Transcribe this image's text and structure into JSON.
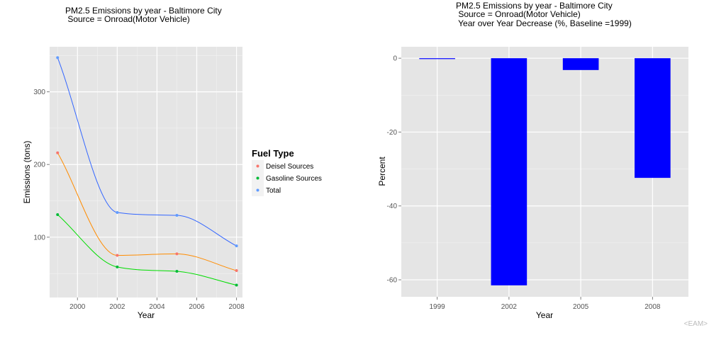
{
  "charts": [
    {
      "title_lines": [
        "PM2.5 Emissions by year - Baltimore City",
        " Source = Onroad(Motor Vehicle)"
      ]
    },
    {
      "title_lines": [
        "PM2.5 Emissions by year - Baltimore City",
        " Source = Onroad(Motor Vehicle)",
        " Year over Year Decrease (%, Baseline =1999)"
      ]
    }
  ],
  "credit": "<EAM>",
  "chart_data": [
    {
      "type": "line",
      "title": "PM2.5 Emissions by year - Baltimore City\n Source = Onroad(Motor Vehicle)",
      "xlabel": "Year",
      "ylabel": "Emissions (tons)",
      "x": [
        1999,
        2002,
        2005,
        2008
      ],
      "xlim": [
        1998.6,
        2008.3
      ],
      "ylim": [
        17,
        362
      ],
      "xticks": [
        2000,
        2002,
        2004,
        2006,
        2008
      ],
      "yticks": [
        100,
        200,
        300
      ],
      "grid": true,
      "smoothed": true,
      "legend": {
        "title": "Fuel Type",
        "position": "right"
      },
      "series": [
        {
          "name": "Deisel Sources",
          "color": "#F8766D",
          "line_color": "#FF8C00",
          "values": [
            216,
            75,
            77,
            54
          ]
        },
        {
          "name": "Gasoline Sources",
          "color": "#00BA38",
          "line_color": "#00DD00",
          "values": [
            131,
            59,
            53,
            34
          ]
        },
        {
          "name": "Total",
          "color": "#619CFF",
          "line_color": "#3366FF",
          "values": [
            347,
            134,
            130,
            88
          ]
        }
      ]
    },
    {
      "type": "bar",
      "title": "PM2.5 Emissions by year - Baltimore City\n Source = Onroad(Motor Vehicle)\n Year over Year Decrease (%, Baseline =1999)",
      "xlabel": "Year",
      "ylabel": "Percent",
      "categories": [
        "1999",
        "2002",
        "2005",
        "2008"
      ],
      "values": [
        0,
        -61.5,
        -3.2,
        -32.4
      ],
      "bar_color": "#0000FF",
      "ylim": [
        -64.6,
        3.1
      ],
      "yticks": [
        0,
        -20,
        -40,
        -60
      ],
      "grid": true
    }
  ]
}
